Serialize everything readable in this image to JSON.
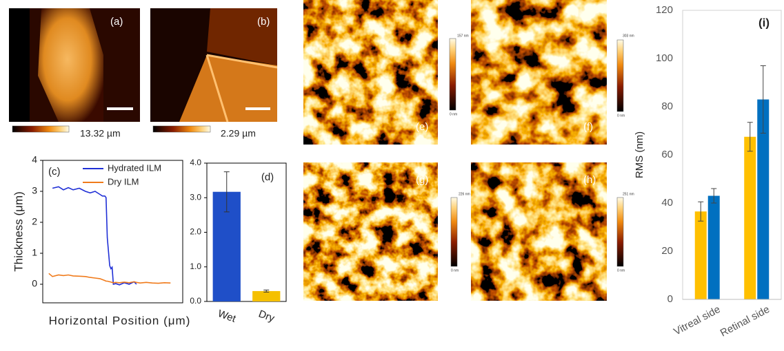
{
  "panels": [
    {
      "label": "(a)",
      "scale_label": "13.32 µm"
    },
    {
      "label": "(b)",
      "scale_label": "2.29 µm"
    },
    {
      "label": "(e)",
      "bar_max": "157 nm",
      "bar_min": "0 nm"
    },
    {
      "label": "(f)",
      "bar_max": "303 nm",
      "bar_min": "0 nm"
    },
    {
      "label": "(g)",
      "bar_max": "226 nm",
      "bar_min": "0 nm"
    },
    {
      "label": "(h)",
      "bar_max": "251 nm",
      "bar_min": "0 nm"
    }
  ],
  "chart_data": [
    {
      "type": "line",
      "label": "(c)",
      "xlabel": "Horizontal Position (μm)",
      "ylabel": "Thickness (μm)",
      "x": [
        0,
        3,
        8,
        12,
        16,
        20,
        25,
        30,
        34,
        38,
        42,
        44,
        46,
        47,
        48,
        50,
        51,
        52,
        53,
        55,
        58,
        62,
        66,
        70,
        72,
        75,
        80,
        85,
        90,
        95,
        100
      ],
      "xlim": [
        -5,
        110
      ],
      "ylim": [
        -0.6,
        4
      ],
      "yticks": [
        0,
        1,
        2,
        3,
        4
      ],
      "series": [
        {
          "name": "Hydrated ILM",
          "color": "#1f2fd6",
          "values": [
            null,
            3.1,
            3.15,
            3.05,
            3.12,
            3.05,
            3.1,
            3.0,
            2.95,
            3.0,
            2.9,
            2.85,
            2.85,
            2.8,
            1.5,
            0.6,
            0.5,
            0.55,
            0.0,
            0.02,
            -0.02,
            0.05,
            0.0,
            0.08,
            0.0,
            null,
            null,
            null,
            null,
            null,
            null
          ]
        },
        {
          "name": "Dry ILM",
          "color": "#f07a1a",
          "values": [
            0.35,
            0.25,
            0.3,
            0.28,
            0.3,
            0.27,
            0.26,
            0.25,
            0.22,
            0.2,
            0.18,
            0.15,
            0.12,
            0.1,
            0.1,
            0.08,
            0.07,
            0.06,
            0.05,
            0.06,
            0.05,
            0.07,
            0.05,
            0.08,
            0.06,
            0.04,
            0.06,
            0.04,
            0.03,
            0.05,
            0.04
          ]
        }
      ]
    },
    {
      "type": "bar",
      "label": "(d)",
      "categories": [
        "Wet",
        "Dry"
      ],
      "values": [
        3.17,
        0.3
      ],
      "errors": [
        0.58,
        0.03
      ],
      "colors": [
        "#1f4fc8",
        "#f5c000"
      ],
      "ylim": [
        0,
        4
      ],
      "yticks": [
        {
          "value": 0,
          "label": "0.0"
        },
        {
          "value": 1,
          "label": "1.0"
        },
        {
          "value": 2,
          "label": "2.0"
        },
        {
          "value": 3,
          "label": "3.0"
        },
        {
          "value": 4,
          "label": "4.0"
        }
      ]
    },
    {
      "type": "groupbar",
      "label": "(i)",
      "ylabel": "RMS (nm)",
      "categories": [
        "Vitreal side",
        "Retinal side"
      ],
      "ylim": [
        0,
        120
      ],
      "yticks": [
        0,
        20,
        40,
        60,
        80,
        100,
        120
      ],
      "series": [
        {
          "color": "#ffc000",
          "values": [
            36.5,
            67.5
          ],
          "errors": [
            4,
            6
          ]
        },
        {
          "color": "#0070c0",
          "values": [
            43,
            83
          ],
          "errors": [
            3,
            14
          ]
        }
      ]
    }
  ]
}
